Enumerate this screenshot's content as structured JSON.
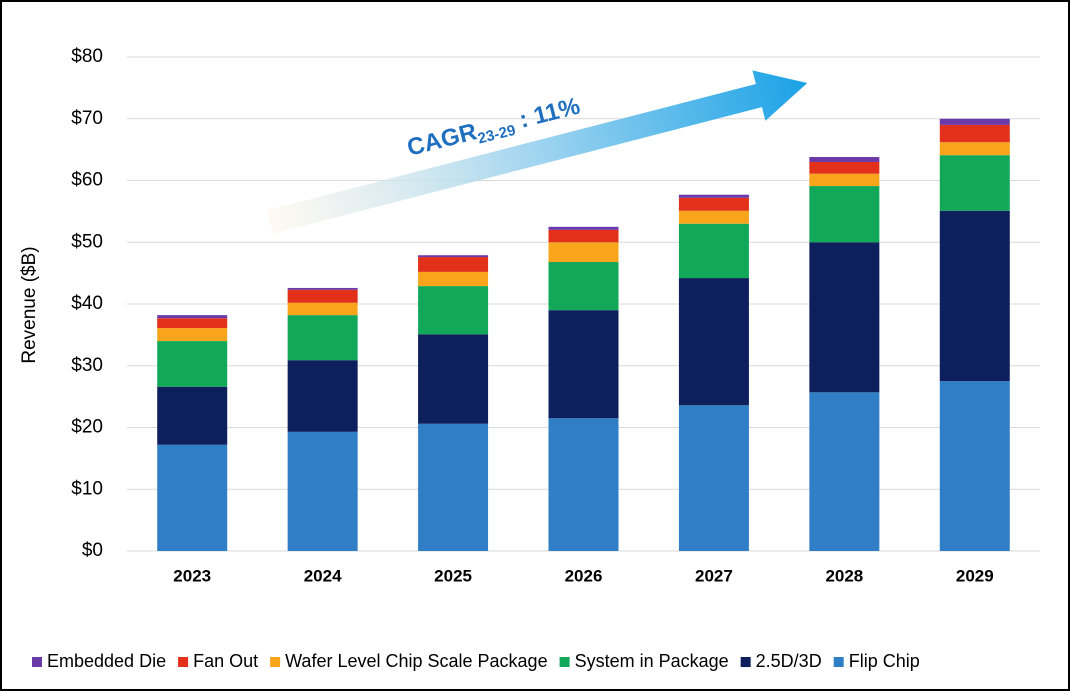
{
  "chart_data": {
    "type": "bar",
    "stacked": true,
    "y_label": "Revenue ($B)",
    "annotation": {
      "text": "CAGR",
      "subscript": "23-29",
      "suffix": " : 11%"
    },
    "categories": [
      "2023",
      "2024",
      "2025",
      "2026",
      "2027",
      "2028",
      "2029"
    ],
    "series": [
      {
        "name": "Flip Chip",
        "color": "#2f7ec6",
        "values": [
          17.2,
          19.3,
          20.6,
          21.5,
          23.6,
          25.7,
          27.5
        ]
      },
      {
        "name": "2.5D/3D",
        "color": "#0d1f5c",
        "values": [
          9.4,
          11.6,
          14.5,
          17.5,
          20.6,
          24.3,
          27.6
        ]
      },
      {
        "name": "System in Package",
        "color": "#12a85a",
        "values": [
          7.4,
          7.3,
          7.8,
          7.8,
          8.8,
          9.1,
          9.0
        ]
      },
      {
        "name": "Wafer Level Chip Scale Package",
        "color": "#f8a51b",
        "values": [
          2.1,
          2.0,
          2.3,
          3.2,
          2.1,
          2.0,
          2.1
        ]
      },
      {
        "name": "Fan Out",
        "color": "#e2301a",
        "values": [
          1.6,
          2.1,
          2.4,
          2.0,
          2.1,
          1.9,
          2.8
        ]
      },
      {
        "name": "Embedded Die",
        "color": "#6b3aa8",
        "values": [
          0.5,
          0.3,
          0.3,
          0.5,
          0.5,
          0.8,
          1.0
        ]
      }
    ],
    "ylim": [
      0,
      80
    ],
    "yticks": [
      {
        "value": 0,
        "label": "$0"
      },
      {
        "value": 10,
        "label": "$10"
      },
      {
        "value": 20,
        "label": "$20"
      },
      {
        "value": 30,
        "label": "$30"
      },
      {
        "value": 40,
        "label": "$40"
      },
      {
        "value": 50,
        "label": "$50"
      },
      {
        "value": 60,
        "label": "$60"
      },
      {
        "value": 70,
        "label": "$70"
      },
      {
        "value": 80,
        "label": "$80"
      }
    ],
    "grid": true,
    "legend": "bottom"
  }
}
